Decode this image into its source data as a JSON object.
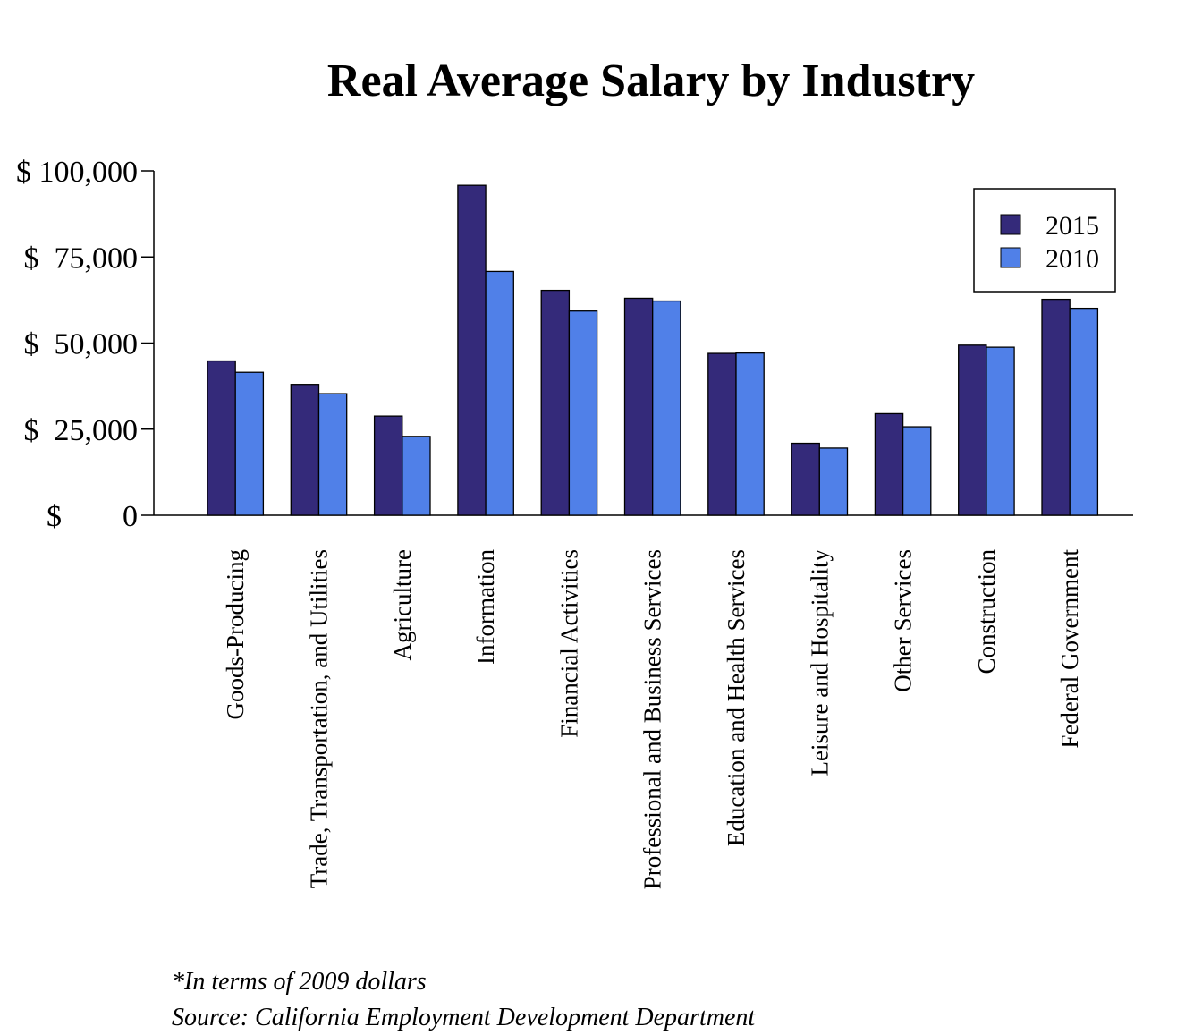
{
  "chart_data": {
    "type": "bar",
    "title": "Real Average Salary by Industry",
    "xlabel": "",
    "ylabel": "",
    "ylim": [
      0,
      100000
    ],
    "yticks": [
      {
        "value": 0,
        "label": "$        0"
      },
      {
        "value": 25000,
        "label": "$  25,000"
      },
      {
        "value": 50000,
        "label": "$  50,000"
      },
      {
        "value": 75000,
        "label": "$  75,000"
      },
      {
        "value": 100000,
        "label": "$ 100,000"
      }
    ],
    "categories": [
      "Goods-Producing",
      "Trade, Transportation, and Utilities",
      "Agriculture",
      "Information",
      "Financial Activities",
      "Professional and Business Services",
      "Education and Health Services",
      "Leisure and Hospitality",
      "Other Services",
      "Construction",
      "Federal Government"
    ],
    "series": [
      {
        "name": "2015",
        "color": "#342a7a",
        "values": [
          44800,
          38000,
          28800,
          95800,
          65300,
          63000,
          47000,
          20900,
          29500,
          49400,
          62700
        ]
      },
      {
        "name": "2010",
        "color": "#5080e8",
        "values": [
          41500,
          35300,
          22900,
          70800,
          59300,
          62200,
          47100,
          19500,
          25700,
          48800,
          60100
        ]
      }
    ],
    "legend_position": "top-right",
    "grid": false
  },
  "notes": {
    "dollars": "*In terms of 2009 dollars",
    "source": "Source: California Employment Development Department"
  }
}
